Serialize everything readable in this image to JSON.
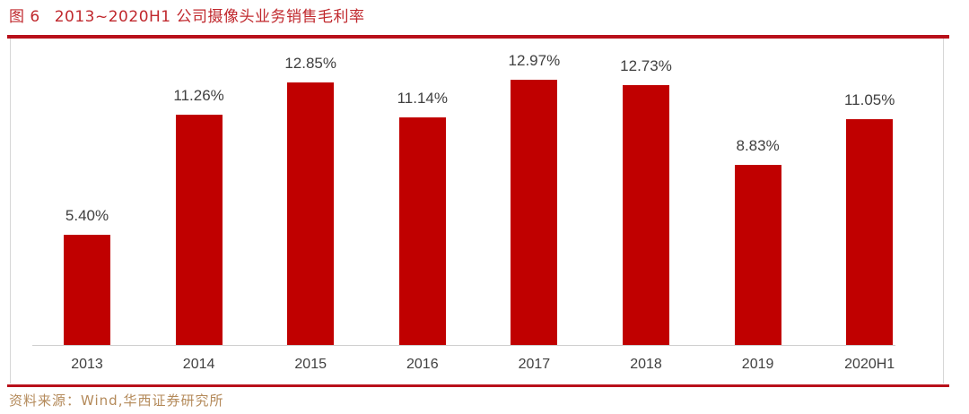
{
  "figure": {
    "number_label": "图 6",
    "title": "2013~2020H1 公司摄像头业务销售毛利率",
    "source": "资料来源：Wind,华西证券研究所"
  },
  "colors": {
    "bar": "#c00000",
    "rule": "#b8101a",
    "title": "#c0282d",
    "source": "#b48a5a"
  },
  "chart_data": {
    "type": "bar",
    "title": "2013~2020H1 公司摄像头业务销售毛利率",
    "xlabel": "",
    "ylabel": "",
    "categories": [
      "2013",
      "2014",
      "2015",
      "2016",
      "2017",
      "2018",
      "2019",
      "2020H1"
    ],
    "values": [
      5.4,
      11.26,
      12.85,
      11.14,
      12.97,
      12.73,
      8.83,
      11.05
    ],
    "value_labels": [
      "5.40%",
      "11.26%",
      "12.85%",
      "11.14%",
      "12.97%",
      "12.73%",
      "8.83%",
      "11.05%"
    ],
    "unit": "%",
    "ylim": [
      0,
      14.5
    ],
    "grid": false,
    "legend": "none",
    "series": [
      {
        "name": "摄像头业务销售毛利率",
        "values": [
          5.4,
          11.26,
          12.85,
          11.14,
          12.97,
          12.73,
          8.83,
          11.05
        ]
      }
    ]
  }
}
